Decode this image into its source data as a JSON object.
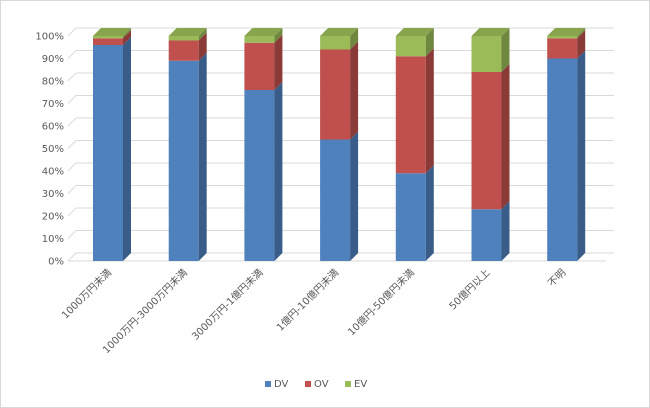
{
  "chart_data": {
    "type": "bar",
    "stacked": true,
    "percent_stacked": true,
    "three_d": true,
    "categories": [
      "1000万円未満",
      "1000万円-3000万円未満",
      "3000万円-1億円未満",
      "1億円-10億円未満",
      "10億円-50億円未満",
      "50億円以上",
      "不明"
    ],
    "series": [
      {
        "name": "DV",
        "color": "#4f81bd",
        "values": [
          96,
          89,
          76,
          54,
          39,
          23,
          90
        ]
      },
      {
        "name": "OV",
        "color": "#c0504d",
        "values": [
          3,
          9,
          21,
          40,
          52,
          61,
          9
        ]
      },
      {
        "name": "EV",
        "color": "#9bbb59",
        "values": [
          1,
          2,
          3,
          6,
          9,
          16,
          1
        ]
      }
    ],
    "ylim": [
      0,
      100
    ],
    "yticks": [
      "0%",
      "10%",
      "20%",
      "30%",
      "40%",
      "50%",
      "60%",
      "70%",
      "80%",
      "90%",
      "100%"
    ],
    "grid": true,
    "legend": "bottom"
  }
}
